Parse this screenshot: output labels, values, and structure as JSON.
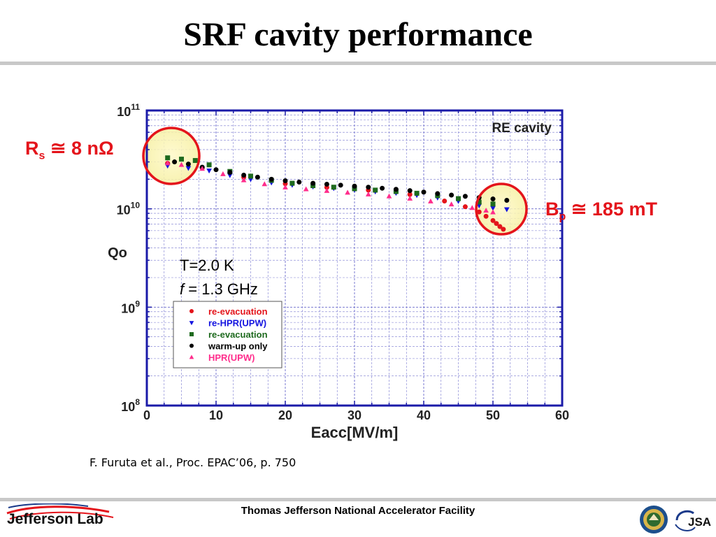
{
  "slide": {
    "title": "SRF cavity performance",
    "citation": "F. Furuta  et al., Proc. EPAC’06, p. 750",
    "footer": "Thomas Jefferson National Accelerator Facility",
    "logo_left": "Jefferson Lab",
    "logo_right": "JSA"
  },
  "annotations": {
    "rs_main": "R",
    "rs_sub": "s",
    "rs_rest": " ≅ 8 nΩ",
    "bp_main": "B",
    "bp_sub": "p",
    "bp_rest": " ≅ 185 mT",
    "temperature": "T=2.0 K",
    "freq_symbol": "f",
    "freq_rest": " = 1.3 GHz"
  },
  "chart_data": {
    "type": "scatter",
    "title": "RE cavity",
    "xlabel": "Eacc[MV/m]",
    "ylabel": "Qo",
    "xlim": [
      0,
      60
    ],
    "ylim": [
      100000000.0,
      100000000000.0
    ],
    "y_scale": "log",
    "grid": true,
    "legend_position": "lower-left",
    "x_ticks": [
      "0",
      "10",
      "20",
      "30",
      "40",
      "50",
      "60"
    ],
    "y_ticks": [
      {
        "value": 100000000000.0,
        "base": "10",
        "exp": "11"
      },
      {
        "value": 10000000000.0,
        "base": "10",
        "exp": "10"
      },
      {
        "value": 1000000000.0,
        "base": "10",
        "exp": "9"
      },
      {
        "value": 100000000.0,
        "base": "10",
        "exp": "8"
      }
    ],
    "series": [
      {
        "name": "re-evacuation",
        "color": "#e4141b",
        "marker": "circle",
        "x": [
          3,
          8,
          14,
          20,
          26,
          32,
          38,
          43,
          46,
          48,
          49,
          50,
          50.5,
          51,
          51.5
        ],
        "y": [
          29000000000.0,
          26000000000.0,
          21000000000.0,
          18000000000.0,
          16500000000.0,
          15500000000.0,
          14000000000.0,
          12000000000.0,
          10500000000.0,
          9300000000.0,
          8400000000.0,
          7600000000.0,
          7100000000.0,
          6600000000.0,
          6200000000.0
        ]
      },
      {
        "name": "re-HPR(UPW)",
        "color": "#1414e0",
        "marker": "triangle-down",
        "x": [
          3,
          6,
          9,
          12,
          15,
          18,
          21,
          24,
          27,
          30,
          33,
          36,
          39,
          42,
          45,
          48,
          50,
          52
        ],
        "y": [
          27500000000.0,
          26000000000.0,
          24500000000.0,
          22000000000.0,
          20000000000.0,
          18500000000.0,
          17500000000.0,
          16800000000.0,
          16200000000.0,
          15600000000.0,
          15000000000.0,
          14500000000.0,
          13800000000.0,
          13000000000.0,
          12000000000.0,
          10800000000.0,
          10200000000.0,
          9900000000.0
        ]
      },
      {
        "name": "re-evacuation",
        "color": "#1e6a1e",
        "marker": "square",
        "x": [
          3,
          5,
          7,
          9,
          12,
          15,
          18,
          21,
          24,
          27,
          30,
          33,
          36,
          39,
          42,
          45,
          48,
          50
        ],
        "y": [
          33000000000.0,
          32000000000.0,
          31000000000.0,
          28000000000.0,
          24000000000.0,
          21500000000.0,
          19500000000.0,
          18200000000.0,
          17200000000.0,
          16600000000.0,
          16000000000.0,
          15500000000.0,
          15000000000.0,
          14400000000.0,
          13600000000.0,
          12700000000.0,
          11700000000.0,
          11200000000.0
        ]
      },
      {
        "name": "warm-up only",
        "color": "#000000",
        "marker": "circle",
        "x": [
          4,
          6,
          8,
          10,
          12,
          14,
          16,
          18,
          20,
          22,
          24,
          26,
          28,
          30,
          32,
          34,
          36,
          38,
          40,
          42,
          44,
          46,
          48,
          50,
          52
        ],
        "y": [
          30000000000.0,
          28500000000.0,
          26500000000.0,
          25000000000.0,
          23500000000.0,
          22000000000.0,
          21000000000.0,
          20000000000.0,
          19300000000.0,
          18700000000.0,
          18200000000.0,
          17800000000.0,
          17400000000.0,
          17000000000.0,
          16600000000.0,
          16200000000.0,
          15800000000.0,
          15300000000.0,
          14800000000.0,
          14300000000.0,
          13800000000.0,
          13400000000.0,
          13000000000.0,
          12600000000.0,
          12200000000.0
        ]
      },
      {
        "name": "HPR(UPW)",
        "color": "#ff2d8c",
        "marker": "triangle-up",
        "x": [
          3,
          5,
          8,
          11,
          14,
          17,
          20,
          23,
          26,
          29,
          32,
          35,
          38,
          41,
          44,
          47,
          49,
          50
        ],
        "y": [
          29000000000.0,
          28000000000.0,
          25500000000.0,
          22500000000.0,
          19500000000.0,
          17800000000.0,
          16500000000.0,
          15800000000.0,
          15200000000.0,
          14600000000.0,
          14000000000.0,
          13400000000.0,
          12700000000.0,
          11900000000.0,
          11100000000.0,
          10200000000.0,
          9600000000.0,
          9200000000.0
        ]
      }
    ]
  }
}
